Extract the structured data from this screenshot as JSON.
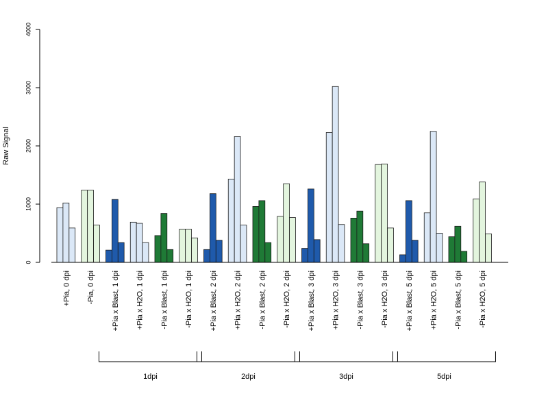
{
  "chart_data": {
    "type": "bar",
    "ylabel": "Raw Signal",
    "xlabel": "",
    "title": "",
    "ylim": [
      0,
      4000
    ],
    "yticks": [
      0,
      1000,
      2000,
      3000,
      4000
    ],
    "grid": false,
    "bars_per_category": 3,
    "categories": [
      "+Pia, 0 dpi",
      "-Pia, 0 dpi",
      "+Pia x Blast, 1 dpi",
      "+Pia x H2O, 1 dpi",
      "-Pia x Blast, 1 dpi",
      "-Pia x H2O, 1 dpi",
      "+Pia x Blast, 2 dpi",
      "+Pia x H2O, 2 dpi",
      "-Pia x Blast, 2 dpi",
      "-Pia x H2O, 2 dpi",
      "+Pia x Blast, 3 dpi",
      "+Pia x H2O, 3 dpi",
      "-Pia x Blast, 3 dpi",
      "-Pia x H2O, 3 dpi",
      "+Pia x Blast, 5 dpi",
      "+Pia x H2O, 5 dpi",
      "-Pia x Blast, 5 dpi",
      "-Pia x H2O, 5 dpi"
    ],
    "values": [
      [
        940,
        1020,
        590
      ],
      [
        1240,
        1240,
        640
      ],
      [
        210,
        1080,
        340
      ],
      [
        690,
        670,
        340
      ],
      [
        460,
        840,
        220
      ],
      [
        570,
        570,
        420
      ],
      [
        220,
        1180,
        380
      ],
      [
        1430,
        2160,
        640
      ],
      [
        960,
        1060,
        340
      ],
      [
        790,
        1350,
        770
      ],
      [
        240,
        1260,
        390
      ],
      [
        2230,
        3020,
        650
      ],
      [
        760,
        880,
        320
      ],
      [
        1680,
        1690,
        590
      ],
      [
        130,
        1060,
        380
      ],
      [
        850,
        2250,
        500
      ],
      [
        440,
        620,
        190
      ],
      [
        1090,
        1380,
        490
      ]
    ],
    "category_colors": [
      "#dbe8f7",
      "#e3f5de",
      "#1f5aab",
      "#dbe8f7",
      "#1f7a36",
      "#e3f5de",
      "#1f5aab",
      "#dbe8f7",
      "#1f7a36",
      "#e3f5de",
      "#1f5aab",
      "#dbe8f7",
      "#1f7a36",
      "#e3f5de",
      "#1f5aab",
      "#dbe8f7",
      "#1f7a36",
      "#e3f5de"
    ],
    "groups": [
      {
        "label": "1dpi",
        "from_category": 2,
        "to_category": 5
      },
      {
        "label": "2dpi",
        "from_category": 6,
        "to_category": 9
      },
      {
        "label": "3dpi",
        "from_category": 10,
        "to_category": 13
      },
      {
        "label": "5dpi",
        "from_category": 14,
        "to_category": 17
      }
    ]
  }
}
